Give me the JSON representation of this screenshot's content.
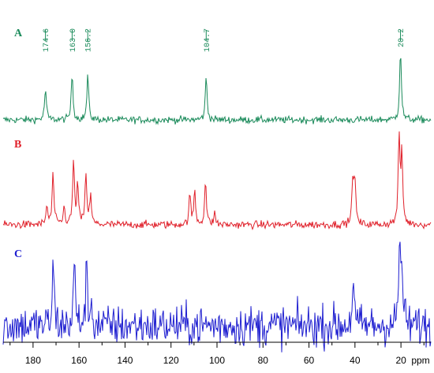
{
  "chart_data": {
    "type": "line",
    "title": "",
    "xlabel": "ppm",
    "ylabel": "",
    "xlim": [
      193,
      7
    ],
    "x_reversed": true,
    "x_ticks": [
      180,
      160,
      140,
      120,
      100,
      80,
      60,
      40,
      20
    ],
    "peak_labels": [
      "174.6",
      "163.0",
      "156.2",
      "104.7",
      "20.2"
    ],
    "series": [
      {
        "name": "A",
        "color": "#1a8a5a",
        "noise": 0.045,
        "peaks": [
          {
            "ppm": 174.6,
            "height": 0.42
          },
          {
            "ppm": 163.0,
            "height": 0.62
          },
          {
            "ppm": 156.2,
            "height": 0.6
          },
          {
            "ppm": 104.7,
            "height": 0.58
          },
          {
            "ppm": 20.2,
            "height": 0.95
          }
        ]
      },
      {
        "name": "B",
        "color": "#e0202a",
        "noise": 0.04,
        "peaks": [
          {
            "ppm": 174.0,
            "height": 0.2
          },
          {
            "ppm": 171.3,
            "height": 0.55
          },
          {
            "ppm": 166.5,
            "height": 0.18
          },
          {
            "ppm": 162.4,
            "height": 0.68
          },
          {
            "ppm": 160.6,
            "height": 0.42
          },
          {
            "ppm": 157.0,
            "height": 0.55
          },
          {
            "ppm": 155.0,
            "height": 0.3
          },
          {
            "ppm": 111.8,
            "height": 0.32
          },
          {
            "ppm": 109.7,
            "height": 0.36
          },
          {
            "ppm": 105.0,
            "height": 0.48
          },
          {
            "ppm": 101.0,
            "height": 0.12
          },
          {
            "ppm": 40.9,
            "height": 0.52
          },
          {
            "ppm": 40.0,
            "height": 0.42
          },
          {
            "ppm": 20.8,
            "height": 0.95
          },
          {
            "ppm": 19.6,
            "height": 0.72
          }
        ]
      },
      {
        "name": "C",
        "color": "#1e1ed0",
        "noise": 0.22,
        "peaks": [
          {
            "ppm": 171.2,
            "height": 0.7
          },
          {
            "ppm": 162.0,
            "height": 0.72
          },
          {
            "ppm": 156.8,
            "height": 0.6
          },
          {
            "ppm": 154.8,
            "height": 0.28
          },
          {
            "ppm": 40.8,
            "height": 0.55
          },
          {
            "ppm": 20.6,
            "height": 0.95
          },
          {
            "ppm": 19.5,
            "height": 0.6
          }
        ]
      }
    ]
  }
}
